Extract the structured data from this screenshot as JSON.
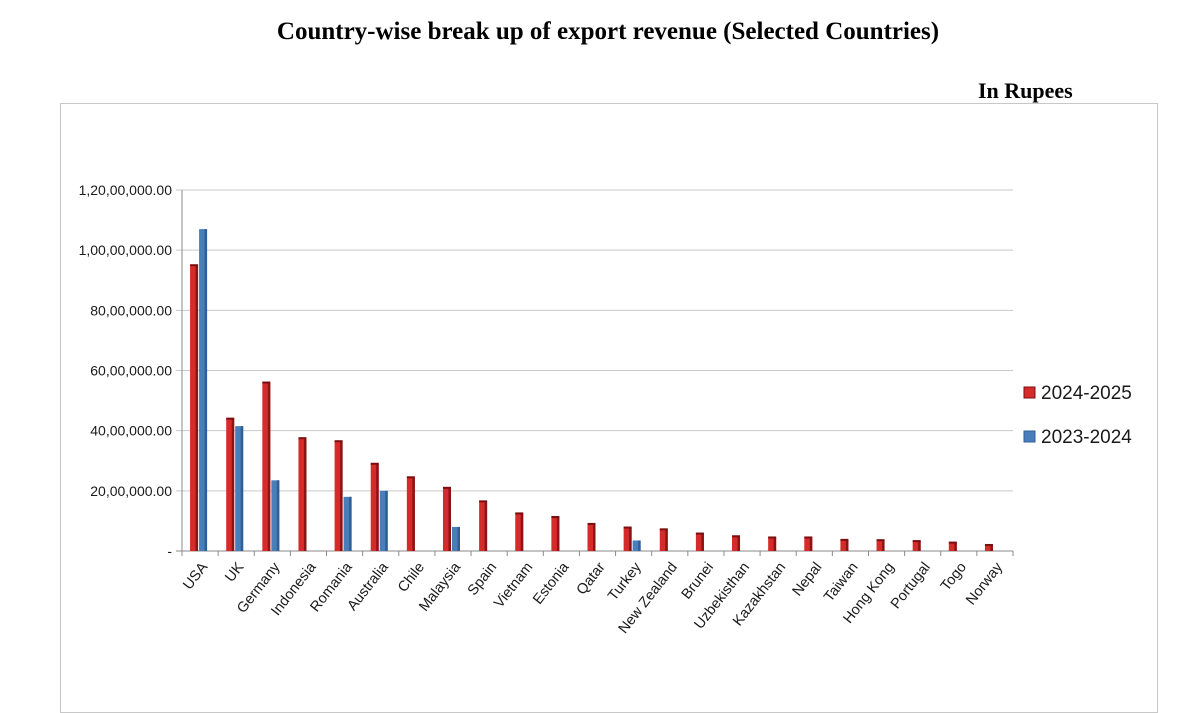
{
  "title": "Country-wise break up of export revenue (Selected Countries)",
  "unit_note": "In Rupees",
  "chart_data": {
    "type": "bar",
    "title": "Country-wise break up of export revenue (Selected Countries)",
    "xlabel": "",
    "ylabel": "",
    "ylim": [
      0,
      12000000
    ],
    "grid": true,
    "legend_position": "right",
    "y_ticks": [
      {
        "value": 0,
        "label": "-"
      },
      {
        "value": 2000000,
        "label": "20,00,000.00"
      },
      {
        "value": 4000000,
        "label": "40,00,000.00"
      },
      {
        "value": 6000000,
        "label": "60,00,000.00"
      },
      {
        "value": 8000000,
        "label": "80,00,000.00"
      },
      {
        "value": 10000000,
        "label": "1,00,00,000.00"
      },
      {
        "value": 12000000,
        "label": "1,20,00,000.00"
      }
    ],
    "categories": [
      "USA",
      "UK",
      "Germany",
      "Indonesia",
      "Romania",
      "Australia",
      "Chile",
      "Malaysia",
      "Spain",
      "Vietnam",
      "Estonia",
      "Qatar",
      "Turkey",
      "New Zealand",
      "Brunei",
      "Uzbekisthan",
      "Kazakhstan",
      "Nepal",
      "Taiwan",
      "Hong Kong",
      "Portugal",
      "Togo",
      "Norway"
    ],
    "series": [
      {
        "name": "2024-2025",
        "color": "#d62b2b",
        "values": [
          9500000,
          4400000,
          5600000,
          3750000,
          3650000,
          2900000,
          2450000,
          2100000,
          1650000,
          1250000,
          1130000,
          900000,
          780000,
          720000,
          580000,
          490000,
          450000,
          450000,
          370000,
          360000,
          330000,
          280000,
          200000
        ]
      },
      {
        "name": "2023-2024",
        "color": "#4a7ebb",
        "values": [
          10700000,
          4150000,
          2350000,
          0,
          1800000,
          2000000,
          0,
          800000,
          0,
          0,
          0,
          0,
          350000,
          0,
          0,
          0,
          0,
          0,
          0,
          0,
          0,
          0,
          0
        ]
      }
    ]
  }
}
